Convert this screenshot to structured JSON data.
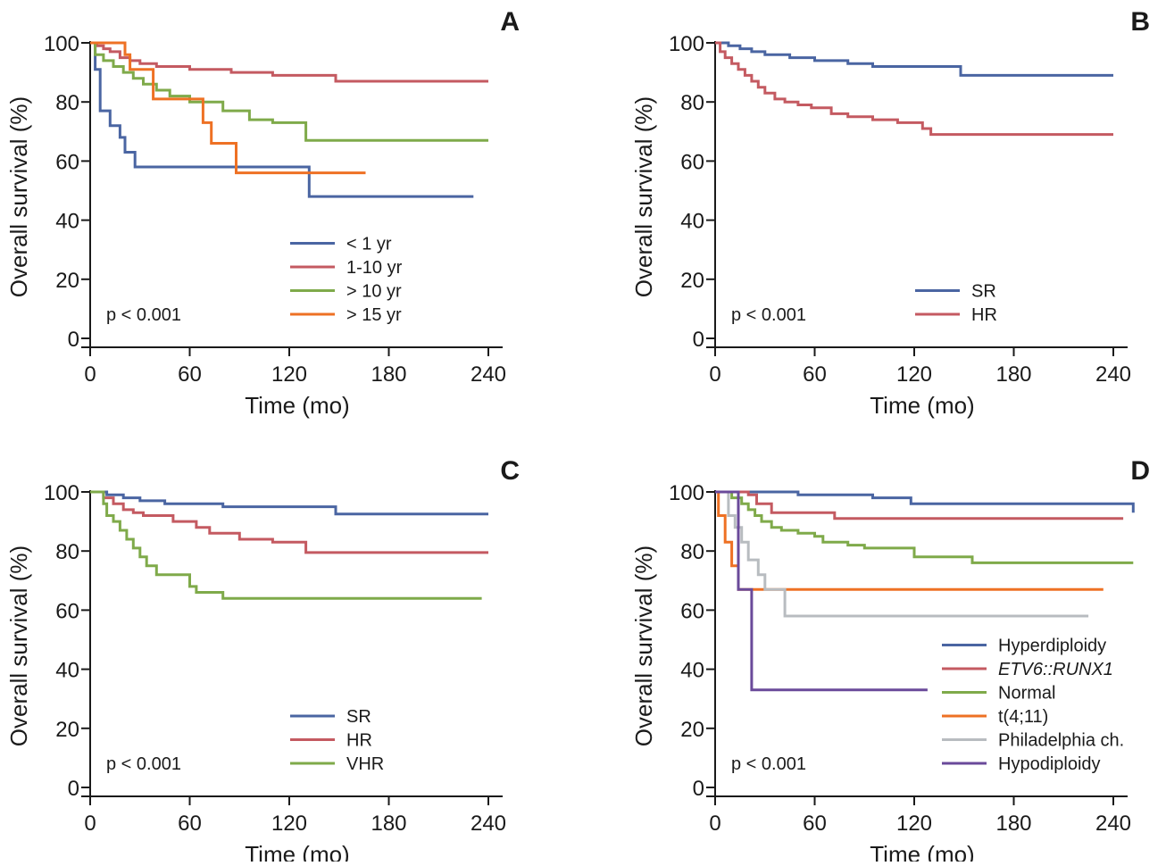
{
  "chart_data": [
    {
      "type": "line",
      "step": true,
      "panel": "A",
      "xlabel": "Time (mo)",
      "ylabel": "Overall survival (%)",
      "xlim": [
        0,
        240
      ],
      "ylim": [
        0,
        100
      ],
      "xticks": [
        "0",
        "60",
        "120",
        "180",
        "240"
      ],
      "yticks": [
        "0",
        "20",
        "40",
        "60",
        "80",
        "100"
      ],
      "p_value": "p < 0.001",
      "legend_position": "bottom-right",
      "series": [
        {
          "name": "< 1 yr",
          "color": "#4a65a2",
          "x": [
            0,
            3,
            6,
            12,
            18,
            21,
            27,
            39,
            132,
            231
          ],
          "y": [
            100,
            91,
            77,
            72,
            68,
            63,
            58,
            58,
            48,
            48
          ]
        },
        {
          "name": "1-10 yr",
          "color": "#c45a61",
          "x": [
            0,
            4,
            8,
            12,
            18,
            24,
            30,
            40,
            60,
            85,
            110,
            148,
            240
          ],
          "y": [
            100,
            99,
            98,
            97,
            95,
            94,
            93,
            92,
            91,
            90,
            89,
            87,
            87
          ]
        },
        {
          "name": "> 10 yr",
          "color": "#7faa4a",
          "x": [
            0,
            3,
            8,
            14,
            20,
            26,
            32,
            40,
            48,
            60,
            80,
            96,
            110,
            130,
            240
          ],
          "y": [
            100,
            96,
            94,
            92,
            90,
            88,
            86,
            84,
            82,
            80,
            77,
            74,
            73,
            67,
            67
          ]
        },
        {
          "name": "> 15 yr",
          "color": "#ee7124",
          "x": [
            0,
            18,
            21,
            24,
            38,
            68,
            73,
            88,
            166
          ],
          "y": [
            100,
            100,
            96,
            91,
            81,
            73,
            66,
            56,
            56
          ]
        }
      ]
    },
    {
      "type": "line",
      "step": true,
      "panel": "B",
      "xlabel": "Time (mo)",
      "ylabel": "Overall survival (%)",
      "xlim": [
        0,
        240
      ],
      "ylim": [
        0,
        100
      ],
      "xticks": [
        "0",
        "60",
        "120",
        "180",
        "240"
      ],
      "yticks": [
        "0",
        "20",
        "40",
        "60",
        "80",
        "100"
      ],
      "p_value": "p < 0.001",
      "legend_position": "bottom-right",
      "series": [
        {
          "name": "SR",
          "color": "#4a65a2",
          "x": [
            0,
            8,
            15,
            22,
            30,
            45,
            60,
            80,
            95,
            110,
            130,
            148,
            240
          ],
          "y": [
            100,
            99,
            98,
            97,
            96,
            95,
            94,
            93,
            92,
            92,
            92,
            89,
            89
          ]
        },
        {
          "name": "HR",
          "color": "#c45a61",
          "x": [
            0,
            3,
            6,
            10,
            14,
            18,
            22,
            26,
            30,
            36,
            42,
            50,
            58,
            70,
            80,
            95,
            110,
            125,
            130,
            240
          ],
          "y": [
            100,
            97,
            95,
            93,
            91,
            89,
            87,
            85,
            83,
            81,
            80,
            79,
            78,
            76,
            75,
            74,
            73,
            71,
            69,
            69
          ]
        }
      ]
    },
    {
      "type": "line",
      "step": true,
      "panel": "C",
      "xlabel": "Time (mo)",
      "ylabel": "Overall survival (%)",
      "xlim": [
        0,
        240
      ],
      "ylim": [
        0,
        100
      ],
      "xticks": [
        "0",
        "60",
        "120",
        "180",
        "240"
      ],
      "yticks": [
        "0",
        "20",
        "40",
        "60",
        "80",
        "100"
      ],
      "p_value": "p < 0.001",
      "legend_position": "bottom-right",
      "series": [
        {
          "name": "SR",
          "color": "#4a65a2",
          "x": [
            0,
            10,
            20,
            30,
            45,
            60,
            80,
            100,
            140,
            148,
            240
          ],
          "y": [
            100,
            99,
            98,
            97,
            96,
            96,
            95,
            95,
            95,
            92.5,
            92.5
          ]
        },
        {
          "name": "HR",
          "color": "#c45a61",
          "x": [
            0,
            8,
            14,
            20,
            26,
            32,
            50,
            64,
            72,
            90,
            110,
            130,
            240
          ],
          "y": [
            100,
            98,
            96,
            94,
            93,
            92,
            90,
            88,
            86,
            84,
            83,
            79.5,
            79.5
          ]
        },
        {
          "name": "VHR",
          "color": "#7faa4a",
          "x": [
            0,
            8,
            10,
            14,
            18,
            22,
            26,
            30,
            34,
            40,
            60,
            64,
            80,
            236
          ],
          "y": [
            100,
            96,
            92,
            90,
            87,
            84,
            81,
            78,
            75,
            72,
            68,
            66,
            64,
            64
          ]
        }
      ]
    },
    {
      "type": "line",
      "step": true,
      "panel": "D",
      "xlabel": "Time (mo)",
      "ylabel": "Overall survival (%)",
      "xlim": [
        0,
        240
      ],
      "ylim": [
        0,
        100
      ],
      "xticks": [
        "0",
        "60",
        "120",
        "180",
        "240"
      ],
      "yticks": [
        "0",
        "20",
        "40",
        "60",
        "80",
        "100"
      ],
      "p_value": "p < 0.001",
      "legend_position": "bottom-right",
      "series": [
        {
          "name": "Hyperdiploidy",
          "italic": false,
          "color": "#4a65a2",
          "x": [
            0,
            50,
            95,
            118,
            252
          ],
          "y": [
            100,
            99,
            98,
            96,
            93
          ]
        },
        {
          "name": "ETV6::RUNX1",
          "italic": true,
          "color": "#c45a61",
          "x": [
            0,
            20,
            25,
            34,
            72,
            246
          ],
          "y": [
            100,
            99,
            96,
            93,
            91,
            91
          ]
        },
        {
          "name": "Normal",
          "italic": false,
          "color": "#7faa4a",
          "x": [
            0,
            10,
            16,
            20,
            24,
            28,
            34,
            40,
            50,
            60,
            65,
            80,
            90,
            120,
            155,
            252
          ],
          "y": [
            100,
            98,
            96,
            94,
            92,
            90,
            88,
            87,
            86,
            85,
            83,
            82,
            81,
            78,
            76,
            76
          ]
        },
        {
          "name": "t(4;11)",
          "italic": false,
          "color": "#ee7124",
          "x": [
            0,
            2,
            6,
            10,
            14,
            234
          ],
          "y": [
            100,
            92,
            83,
            75,
            67,
            67
          ]
        },
        {
          "name": "Philadelphia ch.",
          "italic": false,
          "color": "#b8bcc0",
          "x": [
            0,
            8,
            12,
            16,
            20,
            26,
            30,
            42,
            225
          ],
          "y": [
            100,
            92,
            88,
            83,
            77,
            72,
            67,
            58,
            58
          ]
        },
        {
          "name": "Hypodiploidy",
          "italic": false,
          "color": "#6a4a9a",
          "x": [
            0,
            12,
            14,
            22,
            128
          ],
          "y": [
            100,
            100,
            67,
            33,
            33
          ]
        }
      ]
    }
  ]
}
